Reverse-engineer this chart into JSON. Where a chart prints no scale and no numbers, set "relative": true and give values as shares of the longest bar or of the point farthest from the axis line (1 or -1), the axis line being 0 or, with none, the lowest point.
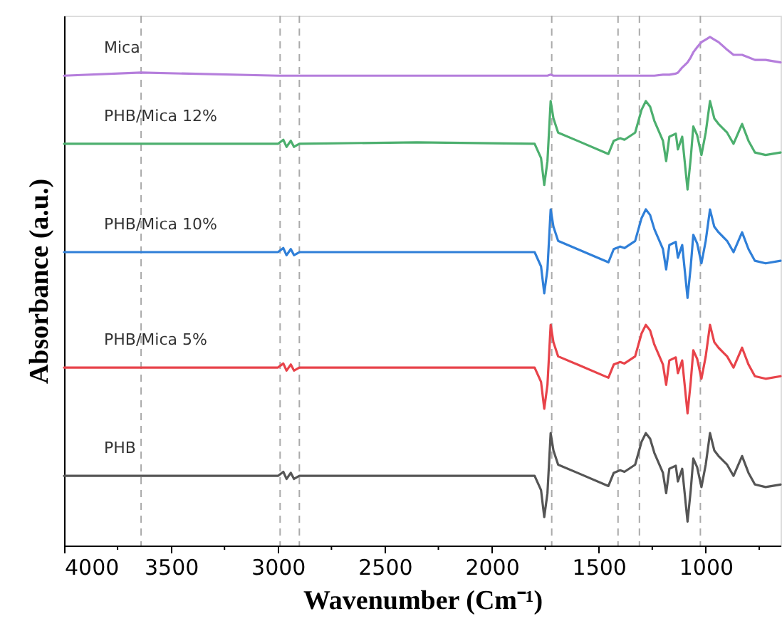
{
  "chart_data": {
    "type": "line",
    "relative": true,
    "xlabel": "Wavenumber (Cm⁻¹)",
    "ylabel": "Absorbance (a.u.)",
    "x": [
      4000,
      3640,
      3000,
      2975,
      2960,
      2940,
      2925,
      2900,
      2350,
      1800,
      1770,
      1755,
      1740,
      1725,
      1712,
      1690,
      1600,
      1455,
      1430,
      1400,
      1380,
      1330,
      1300,
      1280,
      1260,
      1240,
      1200,
      1185,
      1170,
      1140,
      1130,
      1110,
      1085,
      1070,
      1058,
      1040,
      1020,
      1000,
      980,
      960,
      940,
      900,
      870,
      830,
      800,
      770,
      720,
      650
    ],
    "xlim": [
      4000,
      650
    ],
    "xticks": [
      4000,
      {
        "value": 3750,
        "label": null
      },
      3500,
      {
        "value": 3250,
        "label": null
      },
      3000,
      {
        "value": 2750,
        "label": null
      },
      2500,
      {
        "value": 2250,
        "label": null
      },
      2000,
      {
        "value": 1750,
        "label": null
      },
      1500,
      {
        "value": 1250,
        "label": null
      },
      1000,
      {
        "value": 750,
        "label": null
      }
    ],
    "series": [
      {
        "name": "Mica",
        "color": "#b57edc",
        "values": [
          0.924,
          0.93,
          0.924,
          0.924,
          0.924,
          0.924,
          0.924,
          0.924,
          0.924,
          0.924,
          0.924,
          0.924,
          0.924,
          0.926,
          0.924,
          0.924,
          0.924,
          0.924,
          0.924,
          0.924,
          0.924,
          0.924,
          0.924,
          0.924,
          0.924,
          0.924,
          0.926,
          0.926,
          0.926,
          0.928,
          0.93,
          0.94,
          0.95,
          0.96,
          0.97,
          0.98,
          0.99,
          0.995,
          1.0,
          0.995,
          0.99,
          0.975,
          0.965,
          0.965,
          0.96,
          0.955,
          0.955,
          0.95
        ]
      },
      {
        "name": "PHB/Mica 12%",
        "color": "#4caf6e",
        "values": [
          0.79,
          0.79,
          0.79,
          0.798,
          0.784,
          0.796,
          0.784,
          0.79,
          0.793,
          0.79,
          0.762,
          0.709,
          0.756,
          0.874,
          0.84,
          0.812,
          0.796,
          0.77,
          0.796,
          0.801,
          0.798,
          0.812,
          0.857,
          0.874,
          0.863,
          0.835,
          0.796,
          0.756,
          0.804,
          0.81,
          0.779,
          0.804,
          0.7,
          0.762,
          0.824,
          0.807,
          0.768,
          0.812,
          0.874,
          0.84,
          0.829,
          0.812,
          0.79,
          0.829,
          0.796,
          0.773,
          0.768,
          0.773
        ]
      },
      {
        "name": "PHB/Mica 10%",
        "color": "#2f7fd8",
        "values": [
          0.577,
          0.577,
          0.577,
          0.585,
          0.571,
          0.583,
          0.571,
          0.577,
          0.577,
          0.577,
          0.549,
          0.496,
          0.543,
          0.661,
          0.627,
          0.599,
          0.583,
          0.557,
          0.583,
          0.588,
          0.585,
          0.599,
          0.644,
          0.661,
          0.65,
          0.622,
          0.583,
          0.543,
          0.591,
          0.597,
          0.566,
          0.591,
          0.487,
          0.549,
          0.611,
          0.594,
          0.555,
          0.599,
          0.661,
          0.627,
          0.616,
          0.599,
          0.577,
          0.616,
          0.583,
          0.56,
          0.555,
          0.56
        ]
      },
      {
        "name": "PHB/Mica 5%",
        "color": "#e8434a",
        "values": [
          0.35,
          0.35,
          0.35,
          0.358,
          0.344,
          0.356,
          0.344,
          0.35,
          0.35,
          0.35,
          0.322,
          0.269,
          0.316,
          0.434,
          0.4,
          0.372,
          0.356,
          0.33,
          0.356,
          0.361,
          0.358,
          0.372,
          0.417,
          0.434,
          0.423,
          0.395,
          0.356,
          0.316,
          0.364,
          0.37,
          0.339,
          0.364,
          0.26,
          0.322,
          0.384,
          0.367,
          0.328,
          0.372,
          0.434,
          0.4,
          0.389,
          0.372,
          0.35,
          0.389,
          0.356,
          0.333,
          0.328,
          0.333
        ]
      },
      {
        "name": "PHB",
        "color": "#555555",
        "values": [
          0.137,
          0.137,
          0.137,
          0.145,
          0.131,
          0.143,
          0.131,
          0.137,
          0.137,
          0.137,
          0.109,
          0.056,
          0.103,
          0.221,
          0.187,
          0.159,
          0.143,
          0.117,
          0.143,
          0.148,
          0.145,
          0.159,
          0.204,
          0.221,
          0.21,
          0.182,
          0.143,
          0.103,
          0.151,
          0.157,
          0.126,
          0.151,
          0.047,
          0.109,
          0.171,
          0.154,
          0.115,
          0.159,
          0.221,
          0.187,
          0.176,
          0.159,
          0.137,
          0.176,
          0.143,
          0.12,
          0.115,
          0.12
        ]
      }
    ],
    "ref_lines": [
      {
        "axis": "x",
        "value": 3640,
        "color": "#aaaaaa",
        "line_style": "dashed"
      },
      {
        "axis": "x",
        "value": 2990,
        "color": "#aaaaaa",
        "line_style": "dashed"
      },
      {
        "axis": "x",
        "value": 2900,
        "color": "#aaaaaa",
        "line_style": "dashed"
      },
      {
        "axis": "x",
        "value": 1720,
        "color": "#aaaaaa",
        "line_style": "dashed"
      },
      {
        "axis": "x",
        "value": 1410,
        "color": "#aaaaaa",
        "line_style": "dashed"
      },
      {
        "axis": "x",
        "value": 1310,
        "color": "#aaaaaa",
        "line_style": "dashed"
      },
      {
        "axis": "x",
        "value": 1025,
        "color": "#aaaaaa",
        "line_style": "dashed"
      }
    ]
  }
}
